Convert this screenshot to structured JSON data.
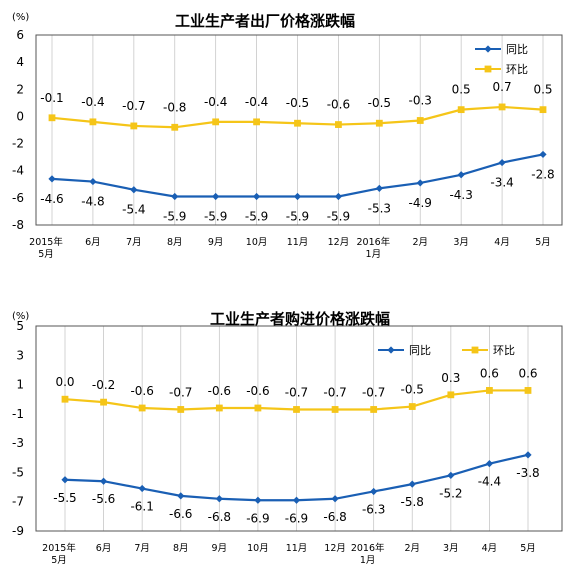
{
  "colors": {
    "yoy": "#1a5fb4",
    "mom": "#f5c518",
    "grid": "#c8c8c8",
    "axis": "#555555"
  },
  "chart_data": [
    {
      "type": "line",
      "title": "工业生产者出厂价格涨跌幅",
      "unit": "(%)",
      "ylim": [
        -8,
        6
      ],
      "yticks": [
        6,
        4,
        2,
        0,
        -2,
        -4,
        -6,
        -8
      ],
      "categories": [
        [
          "2015年",
          "5月"
        ],
        [
          "6月"
        ],
        [
          "7月"
        ],
        [
          "8月"
        ],
        [
          "9月"
        ],
        [
          "10月"
        ],
        [
          "11月"
        ],
        [
          "12月"
        ],
        [
          "2016年",
          "1月"
        ],
        [
          "2月"
        ],
        [
          "3月"
        ],
        [
          "4月"
        ],
        [
          "5月"
        ]
      ],
      "legend_position": "top-right",
      "series": [
        {
          "name": "同比",
          "color_key": "yoy",
          "marker": "diamond",
          "values": [
            -4.6,
            -4.8,
            -5.4,
            -5.9,
            -5.9,
            -5.9,
            -5.9,
            -5.9,
            -5.3,
            -4.9,
            -4.3,
            -3.4,
            -2.8
          ],
          "labels": [
            "-4.6",
            "-4.8",
            "-5.4",
            "-5.9",
            "-5.9",
            "-5.9",
            "-5.9",
            "-5.9",
            "-5.3",
            "-4.9",
            "-4.3",
            "-3.4",
            "-2.8"
          ]
        },
        {
          "name": "环比",
          "color_key": "mom",
          "marker": "square",
          "values": [
            -0.1,
            -0.4,
            -0.7,
            -0.8,
            -0.4,
            -0.4,
            -0.5,
            -0.6,
            -0.5,
            -0.3,
            0.5,
            0.7,
            0.5
          ],
          "labels": [
            "-0.1",
            "-0.4",
            "-0.7",
            "-0.8",
            "-0.4",
            "-0.4",
            "-0.5",
            "-0.6",
            "-0.5",
            "-0.3",
            "0.5",
            "0.7",
            "0.5"
          ]
        }
      ]
    },
    {
      "type": "line",
      "title": "工业生产者购进价格涨跌幅",
      "unit": "(%)",
      "ylim": [
        -9,
        5
      ],
      "yticks": [
        5,
        3,
        1,
        -1,
        -3,
        -5,
        -7,
        -9
      ],
      "categories": [
        [
          "2015年",
          "5月"
        ],
        [
          "6月"
        ],
        [
          "7月"
        ],
        [
          "8月"
        ],
        [
          "9月"
        ],
        [
          "10月"
        ],
        [
          "11月"
        ],
        [
          "12月"
        ],
        [
          "2016年",
          "1月"
        ],
        [
          "2月"
        ],
        [
          "3月"
        ],
        [
          "4月"
        ],
        [
          "5月"
        ]
      ],
      "legend_position": "top-right",
      "series": [
        {
          "name": "同比",
          "color_key": "yoy",
          "marker": "diamond",
          "values": [
            -5.5,
            -5.6,
            -6.1,
            -6.6,
            -6.8,
            -6.9,
            -6.9,
            -6.8,
            -6.3,
            -5.8,
            -5.2,
            -4.4,
            -3.8
          ],
          "labels": [
            "-5.5",
            "-5.6",
            "-6.1",
            "-6.6",
            "-6.8",
            "-6.9",
            "-6.9",
            "-6.8",
            "-6.3",
            "-5.8",
            "-5.2",
            "-4.4",
            "-3.8"
          ]
        },
        {
          "name": "环比",
          "color_key": "mom",
          "marker": "square",
          "values": [
            0.0,
            -0.2,
            -0.6,
            -0.7,
            -0.6,
            -0.6,
            -0.7,
            -0.7,
            -0.7,
            -0.5,
            0.3,
            0.6,
            0.6
          ],
          "labels": [
            "0.0",
            "-0.2",
            "-0.6",
            "-0.7",
            "-0.6",
            "-0.6",
            "-0.7",
            "-0.7",
            "-0.7",
            "-0.5",
            "0.3",
            "0.6",
            "0.6"
          ]
        }
      ]
    }
  ]
}
